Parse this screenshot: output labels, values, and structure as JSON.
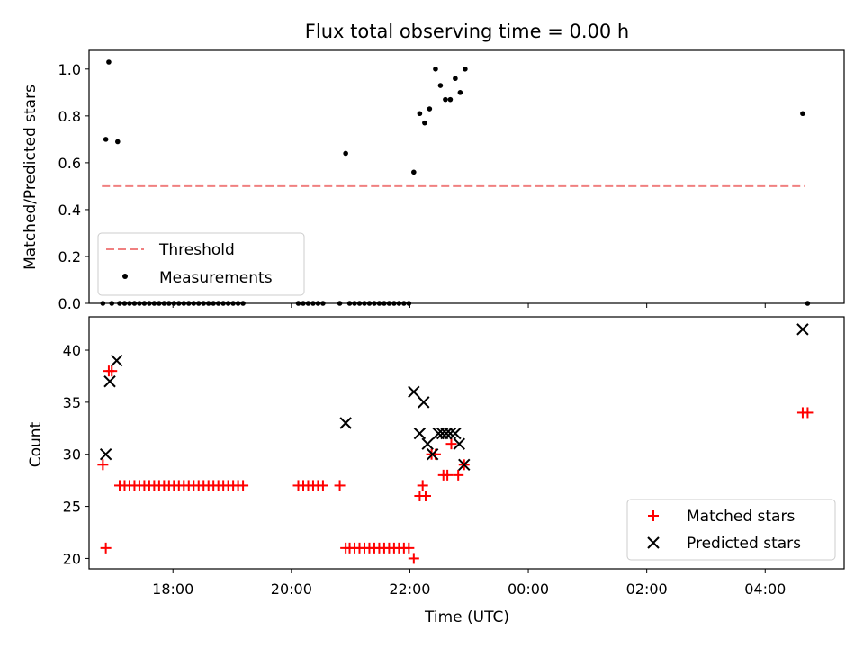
{
  "chart_data": [
    {
      "type": "scatter",
      "title": "Flux total observing time = 0.00 h",
      "xlabel": "",
      "ylabel": "Matched/Predicted stars",
      "xlim": [
        "16:35",
        "05:20"
      ],
      "ylim": [
        0,
        1.08
      ],
      "yticks": [
        "0.0",
        "0.2",
        "0.4",
        "0.6",
        "0.8",
        "1.0"
      ],
      "legend_position": "lower-left",
      "threshold": {
        "name": "Threshold",
        "value": 0.5,
        "x_start": "16:48",
        "x_end": "04:40",
        "color": "#f08080"
      },
      "series": [
        {
          "name": "Measurements",
          "color": "#000000",
          "points": [
            [
              "16:49",
              0.0
            ],
            [
              "16:52",
              0.7
            ],
            [
              "16:55",
              1.03
            ],
            [
              "16:58",
              0.0
            ],
            [
              "17:04",
              0.69
            ],
            [
              "17:06",
              0.0
            ],
            [
              "17:11",
              0.0
            ],
            [
              "17:16",
              0.0
            ],
            [
              "17:21",
              0.0
            ],
            [
              "17:26",
              0.0
            ],
            [
              "17:31",
              0.0
            ],
            [
              "17:36",
              0.0
            ],
            [
              "17:41",
              0.0
            ],
            [
              "17:46",
              0.0
            ],
            [
              "17:51",
              0.0
            ],
            [
              "17:56",
              0.0
            ],
            [
              "18:01",
              0.0
            ],
            [
              "18:06",
              0.0
            ],
            [
              "18:11",
              0.0
            ],
            [
              "18:16",
              0.0
            ],
            [
              "18:21",
              0.0
            ],
            [
              "18:26",
              0.0
            ],
            [
              "18:31",
              0.0
            ],
            [
              "18:36",
              0.0
            ],
            [
              "18:41",
              0.0
            ],
            [
              "18:46",
              0.0
            ],
            [
              "18:51",
              0.0
            ],
            [
              "18:56",
              0.0
            ],
            [
              "19:01",
              0.0
            ],
            [
              "19:06",
              0.0
            ],
            [
              "19:11",
              0.0
            ],
            [
              "20:07",
              0.0
            ],
            [
              "20:12",
              0.0
            ],
            [
              "20:17",
              0.0
            ],
            [
              "20:22",
              0.0
            ],
            [
              "20:27",
              0.0
            ],
            [
              "20:32",
              0.0
            ],
            [
              "20:49",
              0.0
            ],
            [
              "20:55",
              0.64
            ],
            [
              "20:59",
              0.0
            ],
            [
              "21:04",
              0.0
            ],
            [
              "21:09",
              0.0
            ],
            [
              "21:14",
              0.0
            ],
            [
              "21:19",
              0.0
            ],
            [
              "21:24",
              0.0
            ],
            [
              "21:29",
              0.0
            ],
            [
              "21:34",
              0.0
            ],
            [
              "21:39",
              0.0
            ],
            [
              "21:44",
              0.0
            ],
            [
              "21:49",
              0.0
            ],
            [
              "21:54",
              0.0
            ],
            [
              "21:59",
              0.0
            ],
            [
              "22:04",
              0.56
            ],
            [
              "22:10",
              0.81
            ],
            [
              "22:15",
              0.77
            ],
            [
              "22:20",
              0.83
            ],
            [
              "22:26",
              1.0
            ],
            [
              "22:31",
              0.93
            ],
            [
              "22:36",
              0.87
            ],
            [
              "22:41",
              0.87
            ],
            [
              "22:46",
              0.96
            ],
            [
              "22:51",
              0.9
            ],
            [
              "22:56",
              1.0
            ],
            [
              "04:38",
              0.81
            ],
            [
              "04:43",
              0.0
            ]
          ]
        }
      ]
    },
    {
      "type": "scatter",
      "title": "",
      "xlabel": "Time (UTC)",
      "ylabel": "Count",
      "xlim": [
        "16:35",
        "05:20"
      ],
      "ylim": [
        19,
        43.2
      ],
      "yticks": [
        "20",
        "25",
        "30",
        "35",
        "40"
      ],
      "xticks": [
        "18:00",
        "20:00",
        "22:00",
        "00:00",
        "02:00",
        "04:00"
      ],
      "legend_position": "lower-right",
      "series": [
        {
          "name": "Matched stars",
          "color": "#ff0000",
          "marker": "plus",
          "points": [
            [
              "16:49",
              29
            ],
            [
              "16:52",
              21
            ],
            [
              "16:55",
              38
            ],
            [
              "16:58",
              38
            ],
            [
              "17:06",
              27
            ],
            [
              "17:11",
              27
            ],
            [
              "17:16",
              27
            ],
            [
              "17:21",
              27
            ],
            [
              "17:26",
              27
            ],
            [
              "17:31",
              27
            ],
            [
              "17:36",
              27
            ],
            [
              "17:41",
              27
            ],
            [
              "17:46",
              27
            ],
            [
              "17:51",
              27
            ],
            [
              "17:56",
              27
            ],
            [
              "18:01",
              27
            ],
            [
              "18:06",
              27
            ],
            [
              "18:11",
              27
            ],
            [
              "18:16",
              27
            ],
            [
              "18:21",
              27
            ],
            [
              "18:26",
              27
            ],
            [
              "18:31",
              27
            ],
            [
              "18:36",
              27
            ],
            [
              "18:41",
              27
            ],
            [
              "18:46",
              27
            ],
            [
              "18:51",
              27
            ],
            [
              "18:56",
              27
            ],
            [
              "19:01",
              27
            ],
            [
              "19:06",
              27
            ],
            [
              "19:11",
              27
            ],
            [
              "20:07",
              27
            ],
            [
              "20:12",
              27
            ],
            [
              "20:17",
              27
            ],
            [
              "20:22",
              27
            ],
            [
              "20:27",
              27
            ],
            [
              "20:32",
              27
            ],
            [
              "20:49",
              27
            ],
            [
              "20:55",
              21
            ],
            [
              "20:59",
              21
            ],
            [
              "21:04",
              21
            ],
            [
              "21:09",
              21
            ],
            [
              "21:14",
              21
            ],
            [
              "21:19",
              21
            ],
            [
              "21:24",
              21
            ],
            [
              "21:29",
              21
            ],
            [
              "21:34",
              21
            ],
            [
              "21:39",
              21
            ],
            [
              "21:44",
              21
            ],
            [
              "21:49",
              21
            ],
            [
              "21:54",
              21
            ],
            [
              "21:59",
              21
            ],
            [
              "22:04",
              20
            ],
            [
              "22:10",
              26
            ],
            [
              "22:13",
              27
            ],
            [
              "22:16",
              26
            ],
            [
              "22:22",
              30
            ],
            [
              "22:26",
              30
            ],
            [
              "22:34",
              28
            ],
            [
              "22:38",
              28
            ],
            [
              "22:42",
              31
            ],
            [
              "22:49",
              28
            ],
            [
              "22:55",
              29
            ],
            [
              "04:38",
              34
            ],
            [
              "04:43",
              34
            ]
          ]
        },
        {
          "name": "Predicted stars",
          "color": "#000000",
          "marker": "x",
          "points": [
            [
              "16:52",
              30
            ],
            [
              "16:56",
              37
            ],
            [
              "17:03",
              39
            ],
            [
              "20:55",
              33
            ],
            [
              "22:04",
              36
            ],
            [
              "22:10",
              32
            ],
            [
              "22:14",
              35
            ],
            [
              "22:18",
              31
            ],
            [
              "22:23",
              30
            ],
            [
              "22:29",
              32
            ],
            [
              "22:33",
              32
            ],
            [
              "22:37",
              32
            ],
            [
              "22:41",
              32
            ],
            [
              "22:46",
              32
            ],
            [
              "22:50",
              31
            ],
            [
              "22:55",
              29
            ],
            [
              "04:38",
              42
            ]
          ]
        }
      ]
    }
  ]
}
